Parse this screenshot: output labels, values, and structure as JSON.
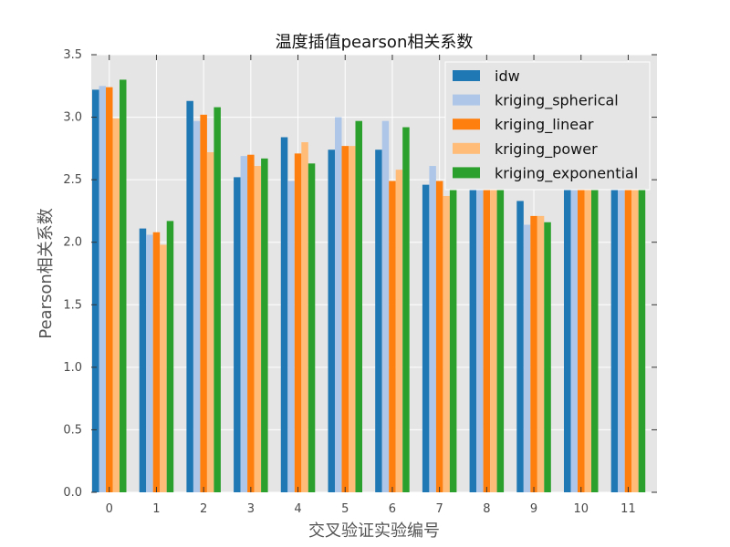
{
  "chart_data": {
    "type": "bar",
    "title": "温度插值pearson相关系数",
    "xlabel": "交叉验证实验编号",
    "ylabel": "Pearson相关系数",
    "categories": [
      "0",
      "1",
      "2",
      "3",
      "4",
      "5",
      "6",
      "7",
      "8",
      "9",
      "10",
      "11"
    ],
    "ylim": [
      0,
      3.5
    ],
    "yticks": [
      "0.0",
      "0.5",
      "1.0",
      "1.5",
      "2.0",
      "2.5",
      "3.0",
      "3.5"
    ],
    "grid": true,
    "legend_position": "top-right",
    "series": [
      {
        "name": "idw",
        "color": "#1f77b4",
        "values": [
          3.22,
          2.11,
          3.13,
          2.52,
          2.84,
          2.74,
          2.74,
          2.46,
          2.43,
          2.33,
          2.43,
          2.43
        ]
      },
      {
        "name": "kriging_spherical",
        "color": "#aec7e8",
        "values": [
          3.25,
          2.06,
          2.97,
          2.69,
          2.49,
          3.0,
          2.97,
          2.61,
          2.43,
          2.14,
          2.43,
          2.43
        ]
      },
      {
        "name": "kriging_linear",
        "color": "#ff7f0e",
        "values": [
          3.24,
          2.08,
          3.02,
          2.7,
          2.71,
          2.77,
          2.49,
          2.49,
          2.43,
          2.21,
          2.43,
          2.43
        ]
      },
      {
        "name": "kriging_power",
        "color": "#ffbb78",
        "values": [
          2.99,
          1.98,
          2.72,
          2.61,
          2.8,
          2.77,
          2.58,
          2.37,
          2.43,
          2.21,
          2.43,
          2.43
        ]
      },
      {
        "name": "kriging_exponential",
        "color": "#2ca02c",
        "values": [
          3.3,
          2.17,
          3.08,
          2.67,
          2.63,
          2.97,
          2.92,
          2.43,
          2.43,
          2.16,
          2.43,
          2.43
        ]
      }
    ]
  }
}
